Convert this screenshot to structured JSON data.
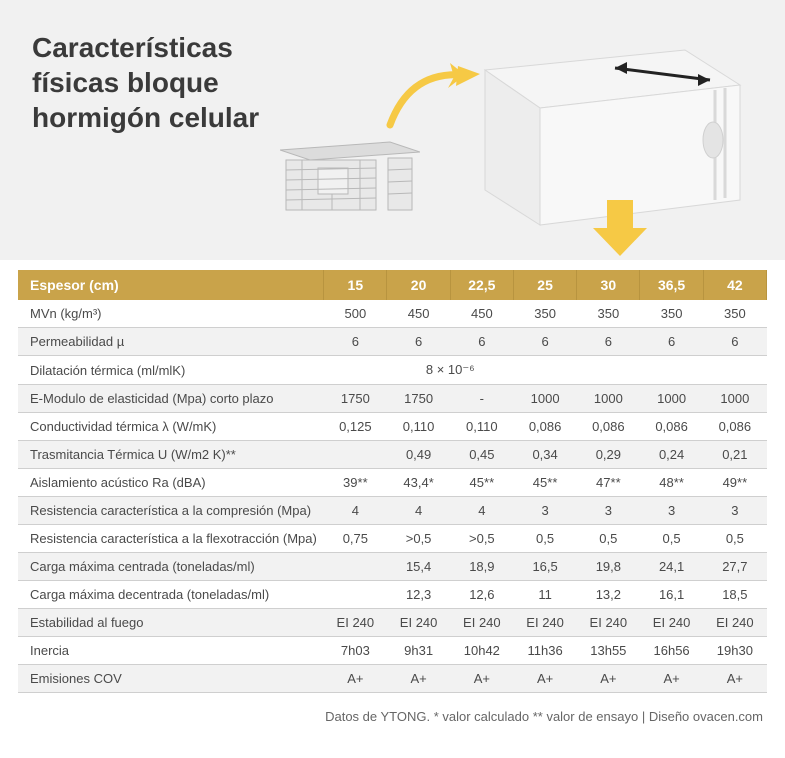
{
  "hero": {
    "title_line1": "Características",
    "title_line2": "físicas bloque",
    "title_line3": "hormigón celular"
  },
  "colors": {
    "hero_bg": "#f1f1f1",
    "header_bg": "#c9a34a",
    "header_text": "#ffffff",
    "row_alt_bg": "#f2f2f2",
    "row_plain_bg": "#ffffff",
    "border": "#cfcfcf",
    "text": "#4a4a4a",
    "title": "#3a3a3a",
    "arrow_yellow": "#f6c945",
    "block_fill": "#ededed",
    "block_stroke": "#cfcfcf"
  },
  "table": {
    "header_label": "Espesor (cm)",
    "columns": [
      "15",
      "20",
      "22,5",
      "25",
      "30",
      "36,5",
      "42"
    ],
    "rows": [
      {
        "label": "MVn (kg/m³)",
        "alt": false,
        "cells": [
          "500",
          "450",
          "450",
          "350",
          "350",
          "350",
          "350"
        ]
      },
      {
        "label": "Permeabilidad µ",
        "alt": true,
        "cells": [
          "6",
          "6",
          "6",
          "6",
          "6",
          "6",
          "6"
        ]
      },
      {
        "label": "Dilatación térmica (ml/mlK)",
        "alt": false,
        "span_value": "8 × 10⁻⁶",
        "span_cols": 4,
        "tail": [
          "",
          "",
          ""
        ]
      },
      {
        "label": "E-Modulo de elasticidad (Mpa) corto plazo",
        "alt": true,
        "cells": [
          "1750",
          "1750",
          "-",
          "1000",
          "1000",
          "1000",
          "1000"
        ]
      },
      {
        "label": "Conductividad térmica λ (W/mK)",
        "alt": false,
        "cells": [
          "0,125",
          "0,110",
          "0,110",
          "0,086",
          "0,086",
          "0,086",
          "0,086"
        ]
      },
      {
        "label": "Trasmitancia Térmica U (W/m2 K)**",
        "alt": true,
        "cells": [
          "",
          "0,49",
          "0,45",
          "0,34",
          "0,29",
          "0,24",
          "0,21"
        ]
      },
      {
        "label": "Aislamiento acústico Ra (dBA)",
        "alt": false,
        "cells": [
          "39**",
          "43,4*",
          "45**",
          "45**",
          "47**",
          "48**",
          "49**"
        ]
      },
      {
        "label": "Resistencia característica a la compresión (Mpa)",
        "alt": true,
        "cells": [
          "4",
          "4",
          "4",
          "3",
          "3",
          "3",
          "3"
        ]
      },
      {
        "label": "Resistencia característica a la flexotracción (Mpa)",
        "alt": false,
        "cells": [
          "0,75",
          ">0,5",
          ">0,5",
          "0,5",
          "0,5",
          "0,5",
          "0,5"
        ]
      },
      {
        "label": "Carga máxima centrada (toneladas/ml)",
        "alt": true,
        "cells": [
          "",
          "15,4",
          "18,9",
          "16,5",
          "19,8",
          "24,1",
          "27,7"
        ]
      },
      {
        "label": "Carga máxima decentrada (toneladas/ml)",
        "alt": false,
        "cells": [
          "",
          "12,3",
          "12,6",
          "11",
          "13,2",
          "16,1",
          "18,5"
        ]
      },
      {
        "label": "Estabilidad al fuego",
        "alt": true,
        "cells": [
          "EI 240",
          "EI 240",
          "EI 240",
          "EI 240",
          "EI 240",
          "EI 240",
          "EI 240"
        ]
      },
      {
        "label": "Inercia",
        "alt": false,
        "cells": [
          "7h03",
          "9h31",
          "10h42",
          "11h36",
          "13h55",
          "16h56",
          "19h30"
        ]
      },
      {
        "label": "Emisiones COV",
        "alt": true,
        "cells": [
          "A+",
          "A+",
          "A+",
          "A+",
          "A+",
          "A+",
          "A+"
        ]
      }
    ]
  },
  "footnote": "Datos de YTONG. * valor calculado ** valor de ensayo  |  Diseño  ovacen.com"
}
